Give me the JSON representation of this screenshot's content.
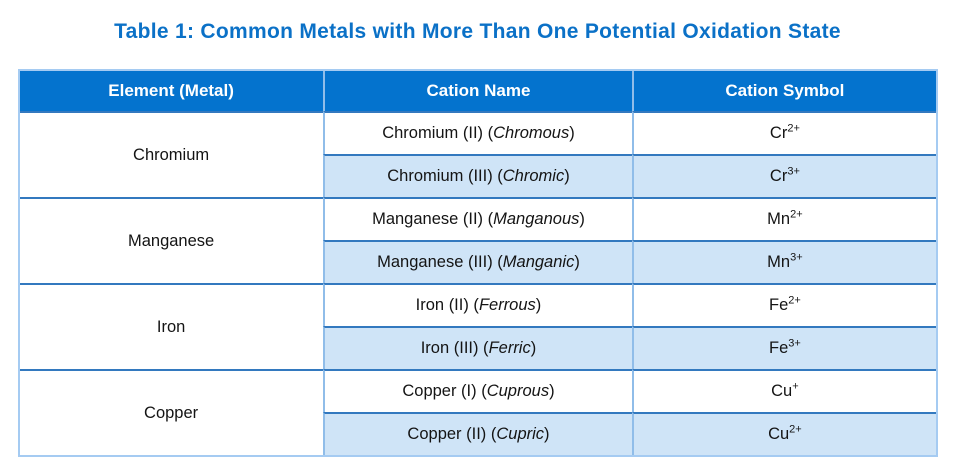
{
  "title": "Table 1: Common Metals with More Than One Potential Oxidation State",
  "table": {
    "headers": [
      "Element (Metal)",
      "Cation Name",
      "Cation Symbol"
    ],
    "groups": [
      {
        "element": "Chromium",
        "rows": [
          {
            "name_prefix": "Chromium (II) (",
            "name_italic": "Chromous",
            "name_suffix": ")",
            "symbol_base": "Cr",
            "symbol_charge": "2+"
          },
          {
            "name_prefix": "Chromium (III) (",
            "name_italic": "Chromic",
            "name_suffix": ")",
            "symbol_base": "Cr",
            "symbol_charge": "3+"
          }
        ]
      },
      {
        "element": "Manganese",
        "rows": [
          {
            "name_prefix": "Manganese (II) (",
            "name_italic": "Manganous",
            "name_suffix": ")",
            "symbol_base": "Mn",
            "symbol_charge": "2+"
          },
          {
            "name_prefix": "Manganese (III) (",
            "name_italic": "Manganic",
            "name_suffix": ")",
            "symbol_base": "Mn",
            "symbol_charge": "3+"
          }
        ]
      },
      {
        "element": "Iron",
        "rows": [
          {
            "name_prefix": "Iron (II) (",
            "name_italic": "Ferrous",
            "name_suffix": ")",
            "symbol_base": "Fe",
            "symbol_charge": "2+"
          },
          {
            "name_prefix": "Iron (III) (",
            "name_italic": "Ferric",
            "name_suffix": ")",
            "symbol_base": "Fe",
            "symbol_charge": "3+"
          }
        ]
      },
      {
        "element": "Copper",
        "rows": [
          {
            "name_prefix": "Copper (I) (",
            "name_italic": "Cuprous",
            "name_suffix": ")",
            "symbol_base": "Cu",
            "symbol_charge": "+"
          },
          {
            "name_prefix": "Copper (II) (",
            "name_italic": "Cupric",
            "name_suffix": ")",
            "symbol_base": "Cu",
            "symbol_charge": "2+"
          }
        ]
      }
    ]
  },
  "colors": {
    "title_text": "#0b71c7",
    "header_background": "#0473ce",
    "header_text": "#ffffff",
    "shaded_row_background": "#cfe4f7",
    "outer_border": "#a5cbf2",
    "vertical_border": "#90bde9",
    "horizontal_border": "#3379bf",
    "body_text": "#141414"
  }
}
